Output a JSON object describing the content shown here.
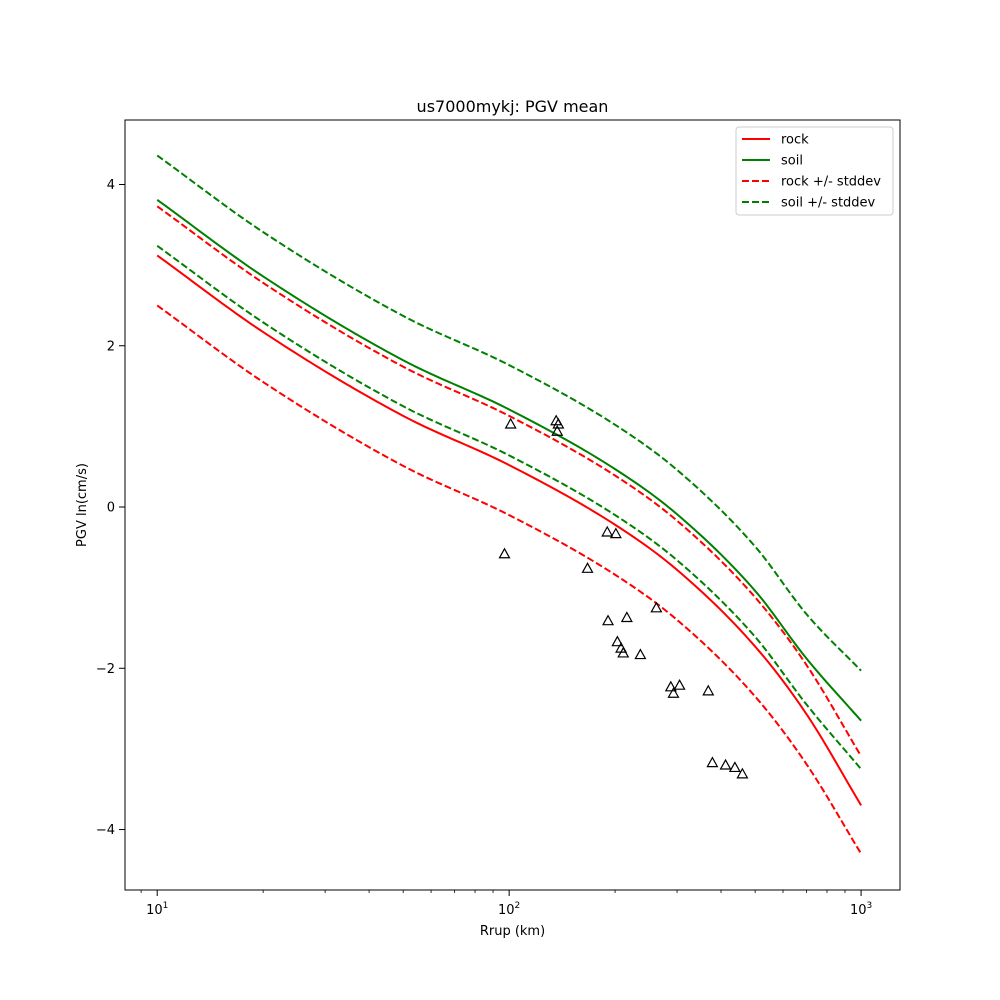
{
  "chart_data": {
    "type": "line",
    "title": "us7000mykj: PGV mean",
    "xlabel": "Rrup (km)",
    "ylabel": "PGV ln(cm/s)",
    "xscale": "log",
    "xlim": [
      8.1,
      1290
    ],
    "ylim": [
      -4.75,
      4.8
    ],
    "xticks": [
      {
        "value": 10,
        "base": "10",
        "exp": "1"
      },
      {
        "value": 100,
        "base": "10",
        "exp": "2"
      },
      {
        "value": 1000,
        "base": "10",
        "exp": "3"
      }
    ],
    "yticks": [
      {
        "value": -4,
        "label": "−4"
      },
      {
        "value": -2,
        "label": "−2"
      },
      {
        "value": 0,
        "label": "0"
      },
      {
        "value": 2,
        "label": "2"
      },
      {
        "value": 4,
        "label": "4"
      }
    ],
    "grid": false,
    "legend_position": "upper right",
    "x": [
      10,
      20,
      50,
      100,
      200,
      300,
      500,
      700,
      1000
    ],
    "series": [
      {
        "name": "rock",
        "color": "#ff0000",
        "dash": "solid",
        "in_legend": true,
        "values": [
          3.12,
          2.17,
          1.13,
          0.52,
          -0.22,
          -0.78,
          -1.73,
          -2.57,
          -3.7
        ]
      },
      {
        "name": "soil",
        "color": "#008000",
        "dash": "solid",
        "in_legend": true,
        "values": [
          3.81,
          2.86,
          1.82,
          1.21,
          0.47,
          -0.09,
          -1.04,
          -1.88,
          -2.65
        ]
      },
      {
        "name": "rock +/- stddev",
        "color": "#ff0000",
        "dash": "dashed",
        "in_legend": true,
        "values": [
          3.73,
          2.78,
          1.74,
          1.13,
          0.39,
          -0.17,
          -1.12,
          -1.96,
          -3.09
        ]
      },
      {
        "name": "",
        "color": "#ff0000",
        "dash": "dashed",
        "in_legend": false,
        "values": [
          2.5,
          1.55,
          0.51,
          -0.1,
          -0.84,
          -1.4,
          -2.35,
          -3.19,
          -4.3
        ]
      },
      {
        "name": "soil +/- stddev",
        "color": "#008000",
        "dash": "dashed",
        "in_legend": true,
        "values": [
          4.36,
          3.41,
          2.37,
          1.76,
          1.02,
          0.46,
          -0.49,
          -1.33,
          -2.03
        ]
      },
      {
        "name": "",
        "color": "#008000",
        "dash": "dashed",
        "in_legend": false,
        "values": [
          3.24,
          2.29,
          1.25,
          0.64,
          -0.1,
          -0.66,
          -1.61,
          -2.45,
          -3.25
        ]
      }
    ],
    "observations": {
      "marker": "triangle",
      "color": "#000000",
      "points": [
        {
          "x": 97,
          "y": -0.58
        },
        {
          "x": 101,
          "y": 1.03
        },
        {
          "x": 136,
          "y": 1.07
        },
        {
          "x": 137,
          "y": 0.94
        },
        {
          "x": 138,
          "y": 1.03
        },
        {
          "x": 167,
          "y": -0.76
        },
        {
          "x": 190,
          "y": -0.31
        },
        {
          "x": 191,
          "y": -1.41
        },
        {
          "x": 201,
          "y": -0.33
        },
        {
          "x": 203,
          "y": -1.67
        },
        {
          "x": 208,
          "y": -1.75
        },
        {
          "x": 211,
          "y": -1.81
        },
        {
          "x": 216,
          "y": -1.37
        },
        {
          "x": 236,
          "y": -1.83
        },
        {
          "x": 262,
          "y": -1.25
        },
        {
          "x": 288,
          "y": -2.23
        },
        {
          "x": 293,
          "y": -2.31
        },
        {
          "x": 305,
          "y": -2.21
        },
        {
          "x": 368,
          "y": -2.28
        },
        {
          "x": 378,
          "y": -3.17
        },
        {
          "x": 412,
          "y": -3.2
        },
        {
          "x": 438,
          "y": -3.23
        },
        {
          "x": 460,
          "y": -3.31
        }
      ]
    }
  }
}
